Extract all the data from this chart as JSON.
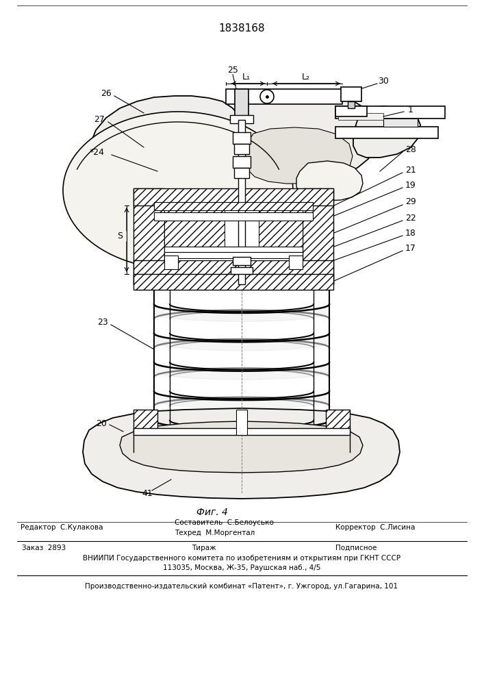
{
  "patent_number": "1838168",
  "fig_label": "Фиг. 4",
  "bg_color": "#ffffff",
  "footer_line1_left": "Редактор  С.Кулакова",
  "footer_line1_mid1": "Составитель  С.Белоусько",
  "footer_line1_mid2": "Техред  М.Моргентал",
  "footer_line1_right": "Корректор  С.Лисина",
  "footer2_left": "Заказ  2893",
  "footer2_mid": "Тираж",
  "footer2_right": "Подписное",
  "footer3": "ВНИИПИ Государственного комитета по изобретениям и открытиям при ГКНТ СССР",
  "footer4": "113035, Москва, Ж-35, Раушская наб., 4/5",
  "footer5": "Производственно-издательский комбинат «Патент», г. Ужгород, ул.Гагарина, 101"
}
